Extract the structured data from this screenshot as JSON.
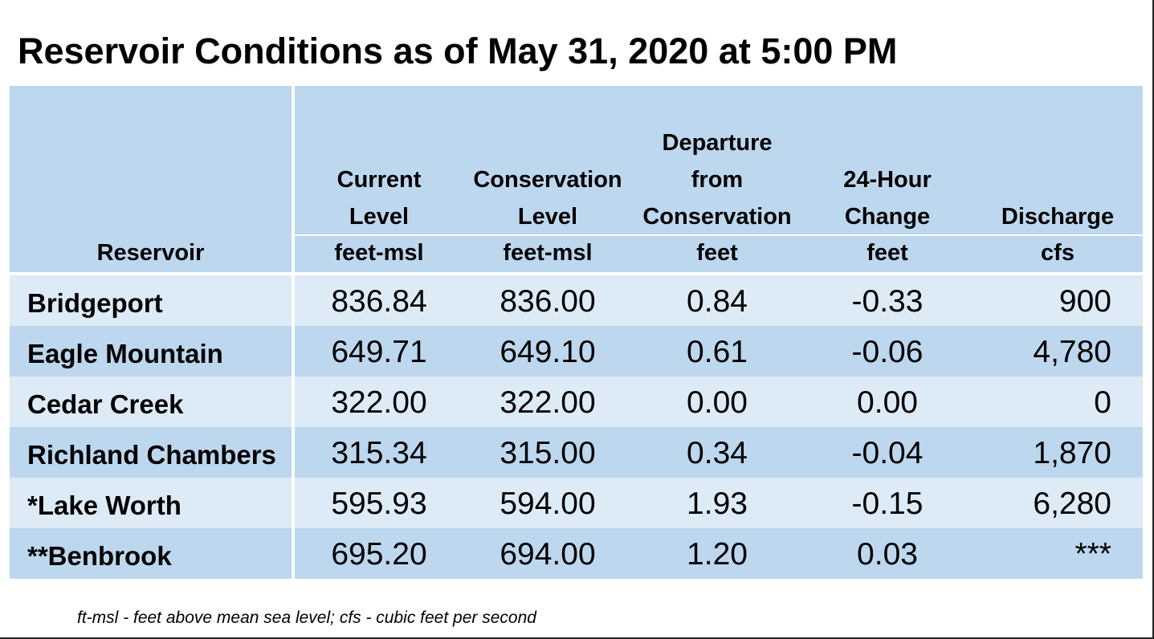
{
  "title": "Reservoir Conditions as of May 31, 2020 at 5:00 PM",
  "columns": [
    {
      "head": [],
      "unit": "Reservoir"
    },
    {
      "head": [
        "Current",
        "Level"
      ],
      "unit": "feet-msl"
    },
    {
      "head": [
        "Conservation",
        "Level"
      ],
      "unit": "feet-msl"
    },
    {
      "head": [
        "Departure",
        "from",
        "Conservation"
      ],
      "unit": "feet"
    },
    {
      "head": [
        "24-Hour",
        "Change"
      ],
      "unit": "feet"
    },
    {
      "head": [
        "Discharge"
      ],
      "unit": "cfs"
    }
  ],
  "rows": [
    {
      "name": "Bridgeport",
      "current": "836.84",
      "conservation": "836.00",
      "departure": "0.84",
      "change": "-0.33",
      "discharge": "900"
    },
    {
      "name": "Eagle Mountain",
      "current": "649.71",
      "conservation": "649.10",
      "departure": "0.61",
      "change": "-0.06",
      "discharge": "4,780"
    },
    {
      "name": "Cedar Creek",
      "current": "322.00",
      "conservation": "322.00",
      "departure": "0.00",
      "change": "0.00",
      "discharge": "0"
    },
    {
      "name": "Richland Chambers",
      "current": "315.34",
      "conservation": "315.00",
      "departure": "0.34",
      "change": "-0.04",
      "discharge": "1,870"
    },
    {
      "name": "*Lake Worth",
      "current": "595.93",
      "conservation": "594.00",
      "departure": "1.93",
      "change": "-0.15",
      "discharge": "6,280"
    },
    {
      "name": "**Benbrook",
      "current": "695.20",
      "conservation": "694.00",
      "departure": "1.20",
      "change": "0.03",
      "discharge": "***"
    }
  ],
  "footnote": "ft-msl - feet above mean sea level; cfs - cubic feet per second",
  "colors": {
    "header": "#bdd7ee",
    "row_light": "#ddebf7",
    "row_dark": "#bdd7ee"
  }
}
